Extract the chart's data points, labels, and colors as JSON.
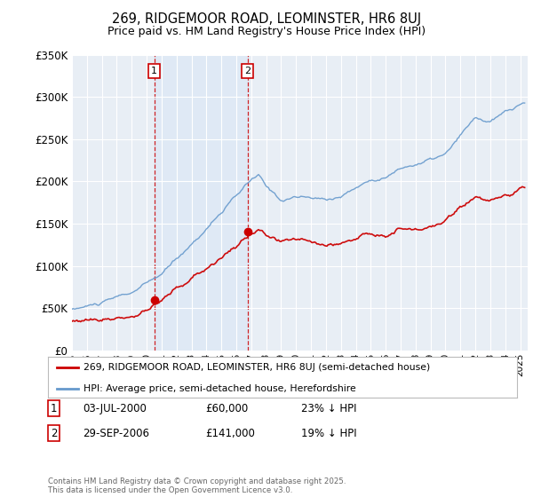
{
  "title": "269, RIDGEMOOR ROAD, LEOMINSTER, HR6 8UJ",
  "subtitle": "Price paid vs. HM Land Registry's House Price Index (HPI)",
  "legend_label_red": "269, RIDGEMOOR ROAD, LEOMINSTER, HR6 8UJ (semi-detached house)",
  "legend_label_blue": "HPI: Average price, semi-detached house, Herefordshire",
  "annotation1_label": "1",
  "annotation1_date": "03-JUL-2000",
  "annotation1_price": "£60,000",
  "annotation1_hpi": "23% ↓ HPI",
  "annotation2_label": "2",
  "annotation2_date": "29-SEP-2006",
  "annotation2_price": "£141,000",
  "annotation2_hpi": "19% ↓ HPI",
  "footer": "Contains HM Land Registry data © Crown copyright and database right 2025.\nThis data is licensed under the Open Government Licence v3.0.",
  "sale1_year": 2000.5,
  "sale1_price": 60000,
  "sale2_year": 2006.75,
  "sale2_price": 141000,
  "ylim_max": 350000,
  "ylim_min": 0,
  "xlim_min": 1995,
  "xlim_max": 2025.5,
  "color_red": "#cc0000",
  "color_blue": "#6699cc",
  "color_blue_fill": "#dce8f5",
  "color_vline": "#cc0000",
  "background_chart": "#e8eef5",
  "background_fig": "#ffffff"
}
